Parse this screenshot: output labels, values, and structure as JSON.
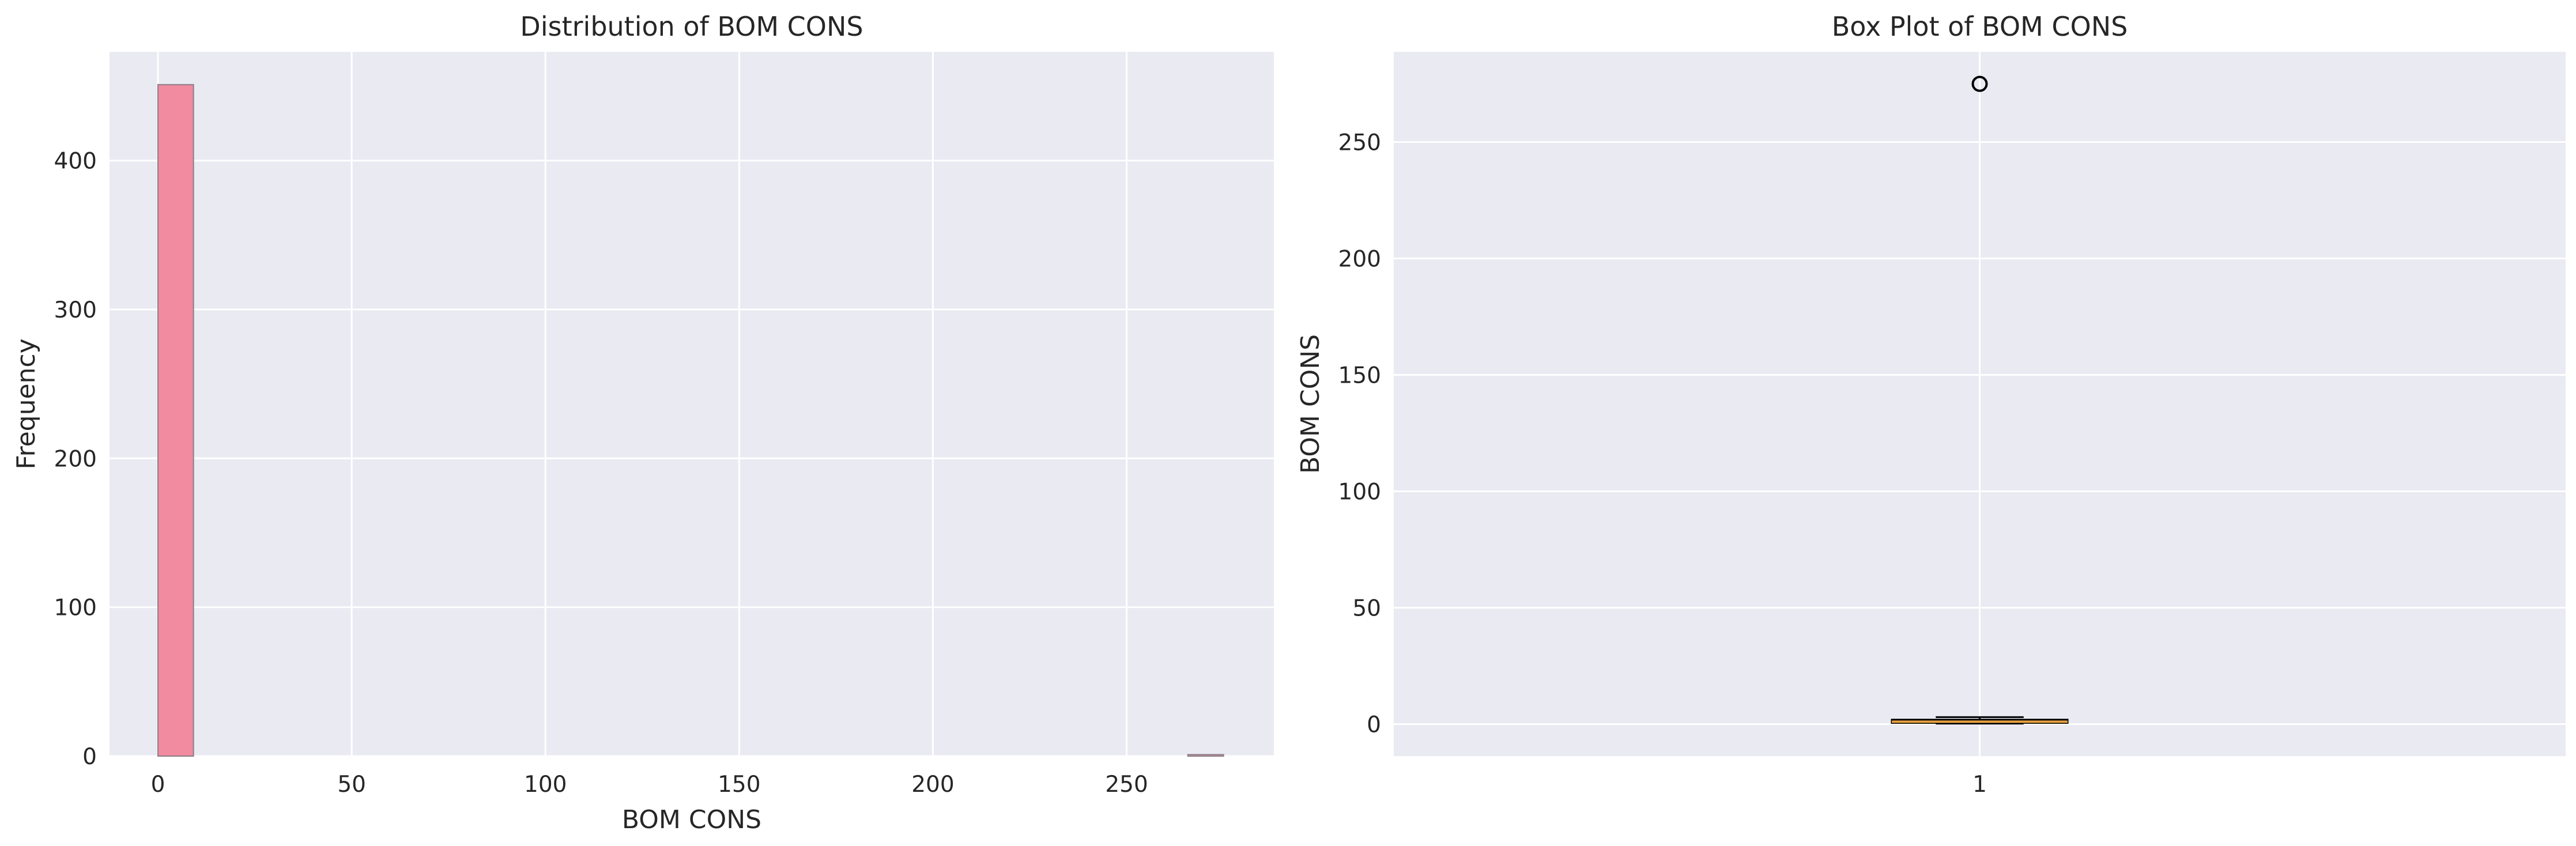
{
  "charts": [
    {
      "type": "bar",
      "title": "Distribution of BOM CONS",
      "xlabel": "BOM CONS",
      "ylabel": "Frequency",
      "xlim": [
        -12.5,
        288
      ],
      "ylim": [
        0,
        473
      ],
      "xticks": [
        0,
        50,
        100,
        150,
        200,
        250
      ],
      "yticks": [
        0,
        100,
        200,
        300,
        400
      ],
      "grid": true,
      "colors": {
        "plot_bg": "#EAEAF2",
        "grid": "#FFFFFF",
        "bar": "#F08BA0",
        "bar_edge": "#8A7F86"
      },
      "bins": [
        {
          "x0": 0,
          "x1": 9.167,
          "count": 451
        },
        {
          "x0": 265.8,
          "x1": 275,
          "count": 1
        }
      ]
    },
    {
      "type": "box",
      "title": "Box Plot of BOM CONS",
      "xlabel": "",
      "ylabel": "BOM CONS",
      "xlim": [
        0.5,
        1.5
      ],
      "ylim": [
        -13.75,
        288.75
      ],
      "xticks": [
        1
      ],
      "yticks": [
        0,
        50,
        100,
        150,
        200,
        250
      ],
      "grid": true,
      "colors": {
        "plot_bg": "#EAEAF2",
        "grid": "#FFFFFF",
        "box_fill": "#F08BA0",
        "box_edge": "#000000",
        "median": "#E6A23C",
        "flier": "#000000"
      },
      "boxes": [
        {
          "position": 1,
          "whisker_low": 0.2,
          "q1": 0.5,
          "median": 1.0,
          "q3": 1.9,
          "whisker_high": 3.0,
          "fliers": [
            275
          ]
        }
      ]
    }
  ]
}
